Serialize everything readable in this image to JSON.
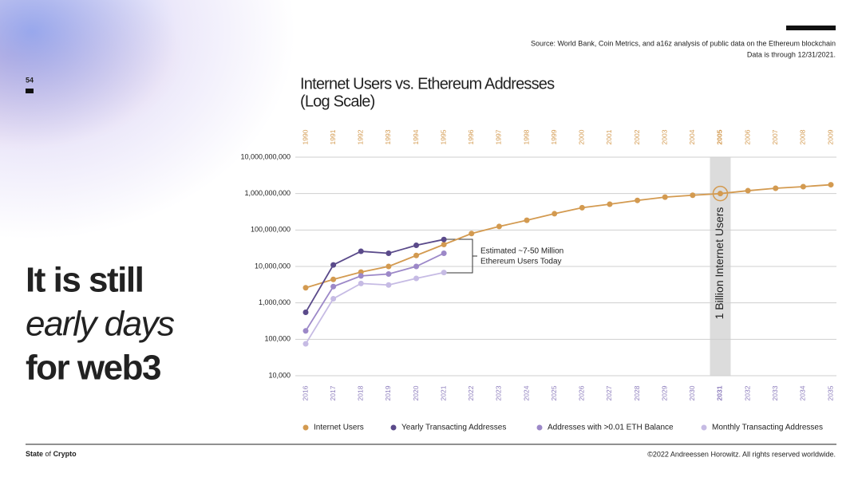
{
  "page_number": "54",
  "headline": [
    "It is still",
    "early days",
    "for web3"
  ],
  "source": [
    "Source: World Bank, Coin Metrics, and a16z analysis of public data on the Ethereum blockchain",
    "Data is through 12/31/2021."
  ],
  "footer": {
    "brand": [
      "State",
      "of",
      "Crypto"
    ],
    "copyright": "©2022 Andreessen Horowitz. All rights reserved worldwide."
  },
  "chart_data": {
    "type": "line",
    "title": [
      "Internet Users vs. Ethereum Addresses",
      "(Log Scale)"
    ],
    "log_scale": true,
    "grid": true,
    "legend": "bottom",
    "categories": [
      "2016",
      "2017",
      "2018",
      "2019",
      "2020",
      "2021",
      "2022",
      "2023",
      "2024",
      "2025",
      "2026",
      "2027",
      "2028",
      "2029",
      "2030",
      "2031",
      "2032",
      "2033",
      "2034",
      "2035"
    ],
    "top_categories": [
      "1990",
      "1991",
      "1992",
      "1993",
      "1994",
      "1995",
      "1996",
      "1997",
      "1998",
      "1999",
      "2000",
      "2001",
      "2002",
      "2003",
      "2004",
      "2005",
      "2006",
      "2007",
      "2008",
      "2009"
    ],
    "highlight_index": 15,
    "ylim": [
      10000,
      10000000000
    ],
    "yticks": [
      {
        "value": 10000,
        "label": "10,000"
      },
      {
        "value": 100000,
        "label": "100,000"
      },
      {
        "value": 1000000,
        "label": "1,000,000"
      },
      {
        "value": 10000000,
        "label": "10,000,000"
      },
      {
        "value": 100000000,
        "label": "100,000,000"
      },
      {
        "value": 1000000000,
        "label": "1,000,000,000"
      },
      {
        "value": 10000000000,
        "label": "10,000,000,000"
      }
    ],
    "annotations": [
      [
        "Estimated ~7-50 Million",
        "Ethereum Users Today"
      ],
      "1 Billion Internet Users"
    ],
    "series": [
      {
        "name": "Internet Users",
        "color": "#d39a50",
        "values": [
          2600000,
          4400000,
          7000000,
          10000000,
          20000000,
          40000000,
          80000000,
          125000000,
          185000000,
          280000000,
          410000000,
          510000000,
          650000000,
          800000000,
          900000000,
          1000000000,
          1200000000,
          1400000000,
          1550000000,
          1750000000
        ]
      },
      {
        "name": "Yearly Transacting Addresses",
        "color": "#5a4a8a",
        "values": [
          550000,
          11000000,
          26000000,
          23000000,
          38000000,
          55000000,
          null,
          null,
          null,
          null,
          null,
          null,
          null,
          null,
          null,
          null,
          null,
          null,
          null,
          null
        ]
      },
      {
        "name": "Addresses with >0.01 ETH Balance",
        "color": "#9c88c8",
        "values": [
          170000,
          2800000,
          5500000,
          6200000,
          10000000,
          23000000,
          null,
          null,
          null,
          null,
          null,
          null,
          null,
          null,
          null,
          null,
          null,
          null,
          null,
          null
        ]
      },
      {
        "name": "Monthly Transacting Addresses",
        "color": "#c6bbe4",
        "values": [
          75000,
          1300000,
          3400000,
          3100000,
          4700000,
          6800000,
          null,
          null,
          null,
          null,
          null,
          null,
          null,
          null,
          null,
          null,
          null,
          null,
          null,
          null
        ]
      }
    ]
  }
}
